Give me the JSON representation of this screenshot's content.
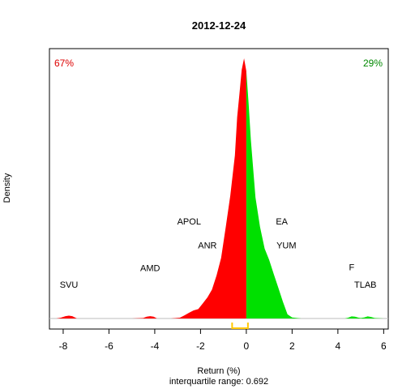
{
  "chart_data": {
    "type": "area",
    "title": "2012-12-24",
    "xlabel": "Return (%)",
    "ylabel": "Density",
    "subtitle": "interquartile range: 0.692",
    "xlim": [
      -8.6,
      6.2
    ],
    "ylim": [
      0,
      1.0
    ],
    "x_ticks": [
      -8,
      -6,
      -4,
      -2,
      0,
      2,
      4,
      6
    ],
    "grid": false,
    "pct_negative": "67%",
    "pct_positive": "29%",
    "colors": {
      "negative": "#ff0000",
      "positive": "#00e000",
      "iqr": "#ffc800",
      "baseline": "#bebebe",
      "pct_negative": "#dd0000",
      "pct_positive": "#008800"
    },
    "iqr": [
      -0.62,
      0.07
    ],
    "density": {
      "x": [
        -8.3,
        -8.1,
        -7.9,
        -7.75,
        -7.6,
        -7.4,
        -5.0,
        -4.5,
        -4.35,
        -4.2,
        -4.05,
        -3.9,
        -3.3,
        -2.9,
        -2.7,
        -2.5,
        -2.3,
        -2.1,
        -1.9,
        -1.7,
        -1.5,
        -1.3,
        -1.1,
        -0.9,
        -0.7,
        -0.5,
        -0.4,
        -0.3,
        -0.2,
        -0.1,
        0.0,
        0.1,
        0.2,
        0.4,
        0.6,
        0.8,
        1.0,
        1.2,
        1.4,
        1.6,
        1.8,
        2.0,
        2.4,
        4.3,
        4.45,
        4.6,
        4.75,
        4.9,
        5.0,
        5.15,
        5.3,
        5.45,
        5.6,
        6.0
      ],
      "y": [
        0.0,
        0.003,
        0.009,
        0.011,
        0.009,
        0.0,
        0.0,
        0.002,
        0.007,
        0.009,
        0.007,
        0.0,
        0.0,
        0.003,
        0.012,
        0.022,
        0.031,
        0.036,
        0.058,
        0.081,
        0.111,
        0.166,
        0.233,
        0.351,
        0.472,
        0.627,
        0.774,
        0.863,
        0.956,
        1.0,
        0.951,
        0.827,
        0.686,
        0.465,
        0.352,
        0.269,
        0.225,
        0.17,
        0.118,
        0.064,
        0.016,
        0.004,
        0.0,
        0.0,
        0.003,
        0.008,
        0.007,
        0.003,
        0.002,
        0.004,
        0.008,
        0.006,
        0.002,
        0.0
      ]
    },
    "annotations": [
      {
        "label": "SVU",
        "x": -7.75,
        "y": 0.118
      },
      {
        "label": "AMD",
        "x": -4.2,
        "y": 0.183
      },
      {
        "label": "ANR",
        "x": -1.7,
        "y": 0.269
      },
      {
        "label": "APOL",
        "x": -2.5,
        "y": 0.361
      },
      {
        "label": "EA",
        "x": 1.55,
        "y": 0.361
      },
      {
        "label": "YUM",
        "x": 1.75,
        "y": 0.269
      },
      {
        "label": "F",
        "x": 4.6,
        "y": 0.186
      },
      {
        "label": "TLAB",
        "x": 5.2,
        "y": 0.118
      }
    ]
  }
}
